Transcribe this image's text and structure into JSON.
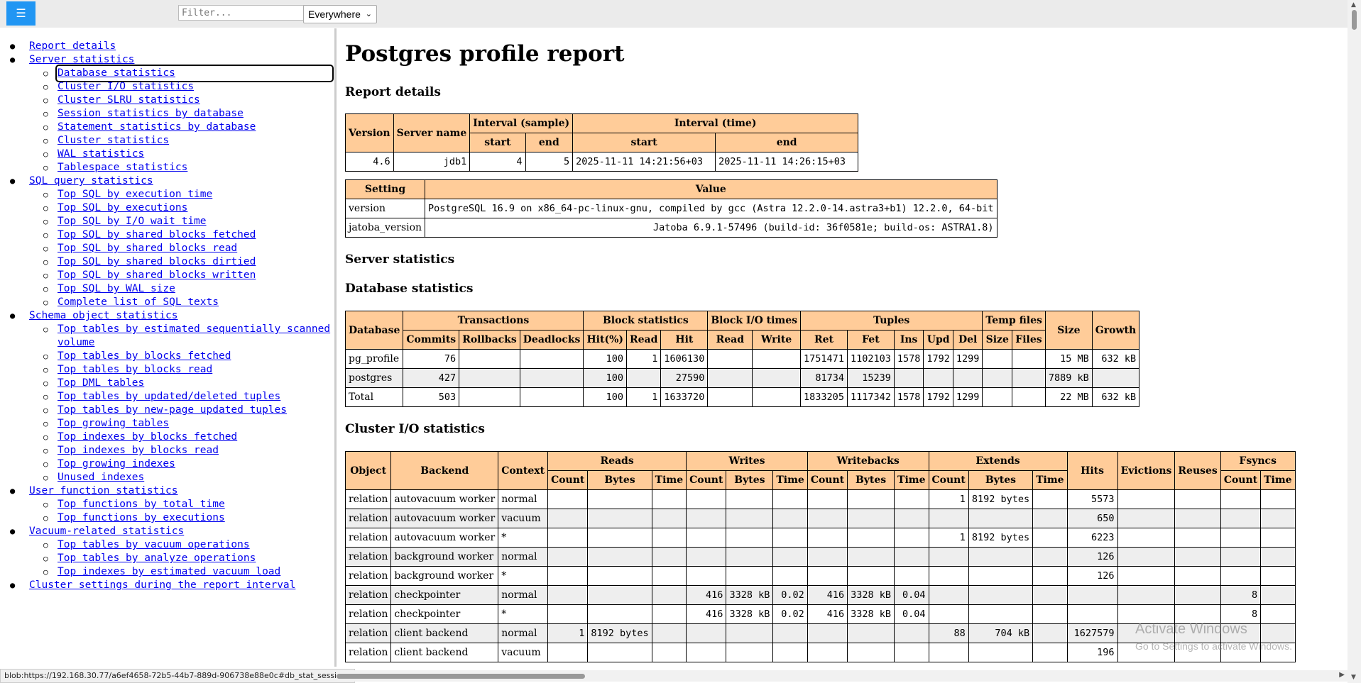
{
  "toolbar": {
    "menu_icon": "hamburger-icon",
    "filter_placeholder": "Filter...",
    "scope_value": "Everywhere"
  },
  "sidebar": {
    "items": [
      {
        "label": "Report details",
        "children": []
      },
      {
        "label": "Server statistics",
        "children": [
          "Database statistics",
          "Cluster I/O statistics",
          "Cluster SLRU statistics",
          "Session statistics by database",
          "Statement statistics by database",
          "Cluster statistics",
          "WAL statistics",
          "Tablespace statistics"
        ]
      },
      {
        "label": "SQL query statistics",
        "children": [
          "Top SQL by execution time",
          "Top SQL by executions",
          "Top SQL by I/O wait time",
          "Top SQL by shared blocks fetched",
          "Top SQL by shared blocks read",
          "Top SQL by shared blocks dirtied",
          "Top SQL by shared blocks written",
          "Top SQL by WAL size",
          "Complete list of SQL texts"
        ]
      },
      {
        "label": "Schema object statistics",
        "children": [
          "Top tables by estimated sequentially scanned volume",
          "Top tables by blocks fetched",
          "Top tables by blocks read",
          "Top DML tables",
          "Top tables by updated/deleted tuples",
          "Top tables by new-page updated tuples",
          "Top growing tables",
          "Top indexes by blocks fetched",
          "Top indexes by blocks read",
          "Top growing indexes",
          "Unused indexes"
        ]
      },
      {
        "label": "User function statistics",
        "children": [
          "Top functions by total time",
          "Top functions by executions"
        ]
      },
      {
        "label": "Vacuum-related statistics",
        "children": [
          "Top tables by vacuum operations",
          "Top tables by analyze operations",
          "Top indexes by estimated vacuum load"
        ]
      },
      {
        "label": "Cluster settings during the report interval",
        "children": []
      }
    ]
  },
  "status_url": "blob:https://192.168.30.77/a6ef4658-72b5-44b7-889d-906738e88e0c#db_stat_sessions",
  "main": {
    "title": "Postgres profile report",
    "report_details": {
      "heading": "Report details",
      "headers": {
        "version": "Version",
        "server_name": "Server name",
        "interval_sample": "Interval (sample)",
        "interval_time": "Interval (time)",
        "start": "start",
        "end": "end"
      },
      "row": {
        "version": "4.6",
        "server_name": "jdb1",
        "sample_start": "4",
        "sample_end": "5",
        "time_start": "2025-11-11 14:21:56+03",
        "time_end": "2025-11-11 14:26:15+03"
      }
    },
    "settings": {
      "headers": {
        "setting": "Setting",
        "value": "Value"
      },
      "rows": [
        {
          "setting": "version",
          "value": "PostgreSQL 16.9 on x86_64-pc-linux-gnu, compiled by gcc (Astra 12.2.0-14.astra3+b1) 12.2.0, 64-bit"
        },
        {
          "setting": "jatoba_version",
          "value": "Jatoba 6.9.1-57496 (build-id: 36f0581e; build-os: ASTRA1.8)"
        }
      ]
    },
    "server_statistics_heading": "Server statistics",
    "database_statistics": {
      "heading": "Database statistics",
      "group_headers": {
        "database": "Database",
        "transactions": "Transactions",
        "block_statistics": "Block statistics",
        "block_io_times": "Block I/O times",
        "tuples": "Tuples",
        "temp_files": "Temp files",
        "size": "Size",
        "growth": "Growth"
      },
      "sub_headers": [
        "Commits",
        "Rollbacks",
        "Deadlocks",
        "Hit(%)",
        "Read",
        "Hit",
        "Read",
        "Write",
        "Ret",
        "Fet",
        "Ins",
        "Upd",
        "Del",
        "Size",
        "Files"
      ],
      "rows": [
        [
          "pg_profile",
          "76",
          "",
          "",
          "100",
          "1",
          "1606130",
          "",
          "",
          "1751471",
          "1102103",
          "1578",
          "1792",
          "1299",
          "",
          "",
          "15 MB",
          "632 kB"
        ],
        [
          "postgres",
          "427",
          "",
          "",
          "100",
          "",
          "27590",
          "",
          "",
          "81734",
          "15239",
          "",
          "",
          "",
          "",
          "",
          "7889 kB",
          ""
        ],
        [
          "Total",
          "503",
          "",
          "",
          "100",
          "1",
          "1633720",
          "",
          "",
          "1833205",
          "1117342",
          "1578",
          "1792",
          "1299",
          "",
          "",
          "22 MB",
          "632 kB"
        ]
      ]
    },
    "cluster_io": {
      "heading": "Cluster I/O statistics",
      "group_headers": {
        "object": "Object",
        "backend": "Backend",
        "context": "Context",
        "reads": "Reads",
        "writes": "Writes",
        "writebacks": "Writebacks",
        "extends": "Extends",
        "hits": "Hits",
        "evictions": "Evictions",
        "reuses": "Reuses",
        "fsyncs": "Fsyncs"
      },
      "sub_headers": [
        "Count",
        "Bytes",
        "Time",
        "Count",
        "Bytes",
        "Time",
        "Count",
        "Bytes",
        "Time",
        "Count",
        "Bytes",
        "Time",
        "Count",
        "Time"
      ],
      "rows": [
        [
          "relation",
          "autovacuum worker",
          "normal",
          "",
          "",
          "",
          "",
          "",
          "",
          "",
          "",
          "",
          "1",
          "8192 bytes",
          "",
          "5573",
          "",
          "",
          "",
          ""
        ],
        [
          "relation",
          "autovacuum worker",
          "vacuum",
          "",
          "",
          "",
          "",
          "",
          "",
          "",
          "",
          "",
          "",
          "",
          "",
          "650",
          "",
          "",
          "",
          ""
        ],
        [
          "relation",
          "autovacuum worker",
          "*",
          "",
          "",
          "",
          "",
          "",
          "",
          "",
          "",
          "",
          "1",
          "8192 bytes",
          "",
          "6223",
          "",
          "",
          "",
          ""
        ],
        [
          "relation",
          "background worker",
          "normal",
          "",
          "",
          "",
          "",
          "",
          "",
          "",
          "",
          "",
          "",
          "",
          "",
          "126",
          "",
          "",
          "",
          ""
        ],
        [
          "relation",
          "background worker",
          "*",
          "",
          "",
          "",
          "",
          "",
          "",
          "",
          "",
          "",
          "",
          "",
          "",
          "126",
          "",
          "",
          "",
          ""
        ],
        [
          "relation",
          "checkpointer",
          "normal",
          "",
          "",
          "",
          "416",
          "3328 kB",
          "0.02",
          "416",
          "3328 kB",
          "0.04",
          "",
          "",
          "",
          "",
          "",
          "",
          "8",
          ""
        ],
        [
          "relation",
          "checkpointer",
          "*",
          "",
          "",
          "",
          "416",
          "3328 kB",
          "0.02",
          "416",
          "3328 kB",
          "0.04",
          "",
          "",
          "",
          "",
          "",
          "",
          "8",
          ""
        ],
        [
          "relation",
          "client backend",
          "normal",
          "1",
          "8192 bytes",
          "",
          "",
          "",
          "",
          "",
          "",
          "",
          "88",
          "704 kB",
          "",
          "1627579",
          "",
          "",
          "",
          ""
        ],
        [
          "relation",
          "client backend",
          "vacuum",
          "",
          "",
          "",
          "",
          "",
          "",
          "",
          "",
          "",
          "",
          "",
          "",
          "196",
          "",
          "",
          "",
          ""
        ]
      ]
    }
  },
  "watermark": {
    "title": "Activate Windows",
    "subtitle": "Go to Settings to activate Windows."
  }
}
